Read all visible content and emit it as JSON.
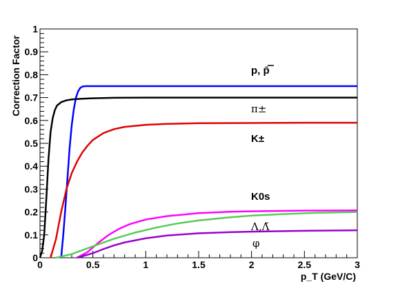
{
  "chart_data": {
    "type": "line",
    "xlabel": "p_T (GeV/C)",
    "ylabel": "Correction Factor",
    "xlim": [
      0,
      3
    ],
    "ylim": [
      0,
      1
    ],
    "x_ticks": [
      "0",
      "0.5",
      "1",
      "1.5",
      "2",
      "2.5",
      "3"
    ],
    "y_ticks": [
      "0",
      "0.1",
      "0.2",
      "0.3",
      "0.4",
      "0.5",
      "0.6",
      "0.7",
      "0.8",
      "0.9",
      "1"
    ],
    "grid": false,
    "legend": "inline labels at right",
    "series": [
      {
        "name": "p, p̄",
        "color": "#0000ff",
        "x": [
          0.2,
          0.22,
          0.24,
          0.26,
          0.28,
          0.3,
          0.32,
          0.34,
          0.36,
          0.38,
          0.4,
          0.43,
          0.46,
          0.5,
          0.6,
          1.0,
          2.0,
          3.0
        ],
        "y": [
          0.0,
          0.1,
          0.22,
          0.35,
          0.48,
          0.58,
          0.65,
          0.7,
          0.727,
          0.742,
          0.748,
          0.75,
          0.75,
          0.75,
          0.75,
          0.75,
          0.75,
          0.75
        ]
      },
      {
        "name": "π±",
        "color": "#000000",
        "x": [
          0.0,
          0.02,
          0.04,
          0.06,
          0.08,
          0.1,
          0.12,
          0.14,
          0.16,
          0.2,
          0.25,
          0.3,
          0.4,
          0.5,
          0.7,
          1.0,
          2.0,
          3.0
        ],
        "y": [
          0.0,
          0.03,
          0.1,
          0.26,
          0.43,
          0.55,
          0.61,
          0.645,
          0.665,
          0.68,
          0.688,
          0.692,
          0.695,
          0.697,
          0.699,
          0.7,
          0.7,
          0.7
        ]
      },
      {
        "name": "K±",
        "color": "#e00000",
        "x": [
          0.1,
          0.15,
          0.2,
          0.25,
          0.3,
          0.35,
          0.4,
          0.45,
          0.5,
          0.6,
          0.7,
          0.8,
          1.0,
          1.2,
          1.5,
          2.0,
          2.5,
          3.0
        ],
        "y": [
          0.0,
          0.08,
          0.2,
          0.3,
          0.37,
          0.42,
          0.46,
          0.49,
          0.515,
          0.545,
          0.562,
          0.572,
          0.581,
          0.585,
          0.588,
          0.589,
          0.59,
          0.59
        ]
      },
      {
        "name": "K0s",
        "color": "#ff00ff",
        "x": [
          0.35,
          0.45,
          0.55,
          0.65,
          0.75,
          0.85,
          1.0,
          1.2,
          1.5,
          1.8,
          2.0,
          2.5,
          3.0
        ],
        "y": [
          0.0,
          0.025,
          0.065,
          0.1,
          0.127,
          0.147,
          0.167,
          0.182,
          0.195,
          0.201,
          0.203,
          0.206,
          0.207
        ]
      },
      {
        "name": "Λ, Λ̄",
        "color": "#55cc55",
        "x": [
          0.15,
          0.3,
          0.5,
          0.7,
          0.9,
          1.1,
          1.3,
          1.5,
          1.8,
          2.0,
          2.3,
          2.6,
          3.0
        ],
        "y": [
          0.0,
          0.016,
          0.05,
          0.083,
          0.11,
          0.132,
          0.15,
          0.163,
          0.177,
          0.184,
          0.191,
          0.196,
          0.2
        ]
      },
      {
        "name": "φ",
        "color": "#9900cc",
        "x": [
          0.35,
          0.5,
          0.6,
          0.7,
          0.8,
          1.0,
          1.2,
          1.5,
          1.8,
          2.0,
          2.5,
          3.0
        ],
        "y": [
          0.0,
          0.02,
          0.038,
          0.054,
          0.067,
          0.085,
          0.097,
          0.107,
          0.112,
          0.114,
          0.118,
          0.12
        ]
      }
    ],
    "labels": [
      {
        "text": "p, p̄",
        "series": 0
      },
      {
        "text": "π±",
        "series": 1
      },
      {
        "text": "K±",
        "series": 2
      },
      {
        "text": "K0s",
        "series": 3
      },
      {
        "text": "Λ,Λ̄",
        "series": 4
      },
      {
        "text": "φ",
        "series": 5
      }
    ]
  }
}
